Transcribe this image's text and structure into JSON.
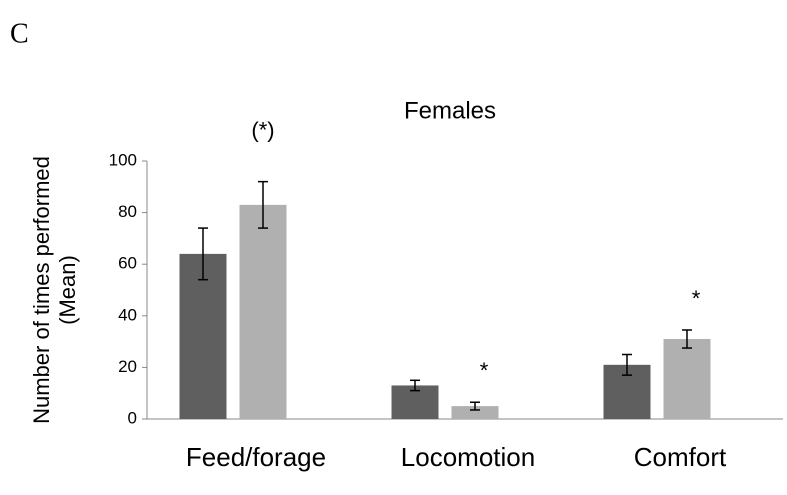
{
  "chart_data": {
    "type": "bar",
    "panel_label": "C",
    "title": "Females",
    "y_label": [
      "Number of times performed",
      "(Mean)"
    ],
    "categories": [
      "Feed/forage",
      "Locomotion",
      "Comfort"
    ],
    "series": [
      {
        "color": "#5f5f5f",
        "values": [
          64,
          13,
          21
        ],
        "errors": [
          10,
          2,
          4
        ]
      },
      {
        "color": "#b0b0b0",
        "values": [
          83,
          5,
          31
        ],
        "errors": [
          9,
          1.5,
          3.5
        ]
      }
    ],
    "annotations": [
      "(*)",
      "*",
      "*"
    ],
    "ylim": [
      0,
      100
    ],
    "yticks": [
      0,
      20,
      40,
      60,
      80,
      100
    ],
    "grid": false
  }
}
